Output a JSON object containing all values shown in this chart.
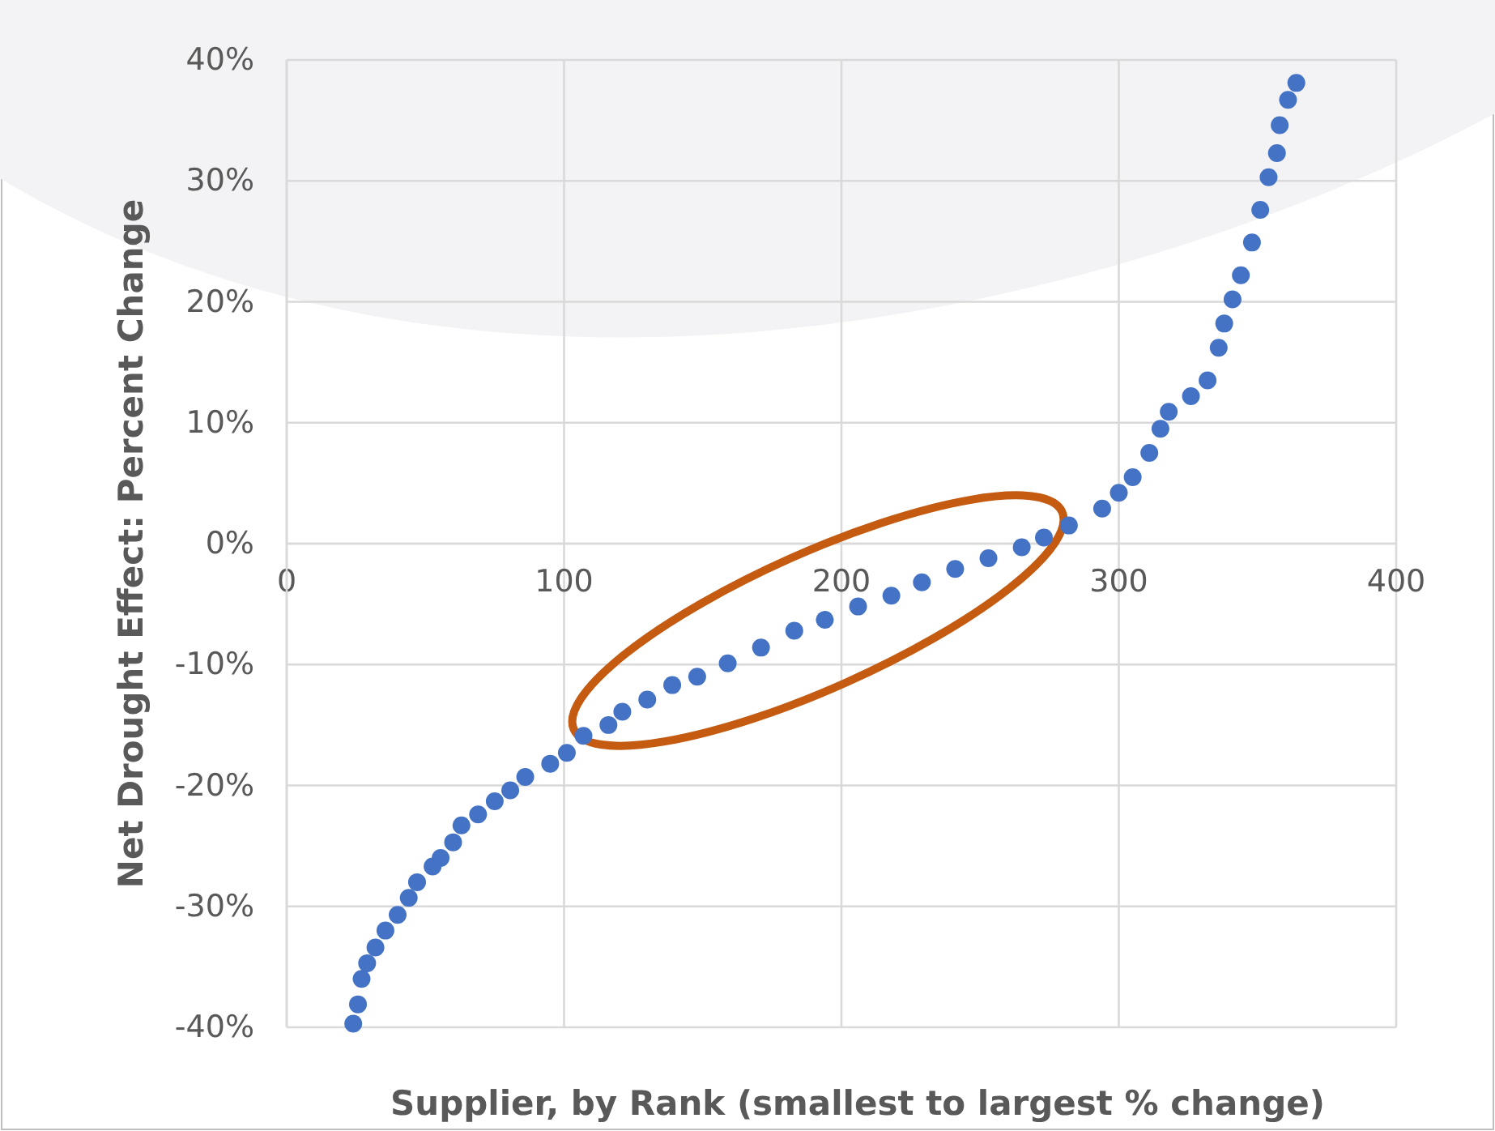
{
  "chart_data": {
    "type": "scatter",
    "xlabel": "Supplier, by Rank (smallest to largest % change)",
    "ylabel": "Net Drought Effect: Percent Change",
    "xlim": [
      0,
      400
    ],
    "xticks": [
      0,
      100,
      200,
      300,
      400
    ],
    "ylim": [
      -40,
      40
    ],
    "yticks": [
      {
        "value": -40,
        "label": "-40%"
      },
      {
        "value": -30,
        "label": "-30%"
      },
      {
        "value": -20,
        "label": "-20%"
      },
      {
        "value": -10,
        "label": "-10%"
      },
      {
        "value": 0,
        "label": "0%"
      },
      {
        "value": 10,
        "label": "10%"
      },
      {
        "value": 20,
        "label": "20%"
      },
      {
        "value": 30,
        "label": "30%"
      },
      {
        "value": 40,
        "label": "40%"
      }
    ],
    "grid": true,
    "marker": "circle",
    "series": [
      {
        "color": "#4472c4",
        "x": [
          24,
          25.7,
          27,
          29,
          32,
          35.6,
          40,
          44,
          47,
          52.6,
          55.5,
          60,
          63,
          69,
          75,
          80.6,
          86,
          95,
          101,
          107,
          116,
          121,
          130,
          139,
          148,
          159,
          171,
          183,
          194,
          206,
          218,
          229,
          241,
          253,
          265,
          273,
          282,
          294,
          300,
          305,
          311,
          315,
          318,
          326,
          332,
          336,
          338,
          341,
          344,
          348,
          351,
          354,
          357,
          358,
          361,
          364
        ],
        "values": [
          -39.7,
          -38.1,
          -36,
          -34.7,
          -33.4,
          -32,
          -30.7,
          -29.3,
          -28,
          -26.7,
          -26,
          -24.7,
          -23.3,
          -22.4,
          -21.3,
          -20.4,
          -19.3,
          -18.2,
          -17.3,
          -15.9,
          -15,
          -13.9,
          -12.9,
          -11.7,
          -11,
          -9.9,
          -8.6,
          -7.2,
          -6.3,
          -5.2,
          -4.3,
          -3.2,
          -2.1,
          -1.2,
          -0.3,
          0.5,
          1.5,
          2.9,
          4.2,
          5.5,
          7.5,
          9.5,
          10.9,
          12.2,
          13.5,
          16.2,
          18.2,
          20.2,
          22.2,
          24.9,
          27.6,
          30.3,
          32.3,
          34.6,
          36.7,
          38.1
        ]
      }
    ]
  }
}
